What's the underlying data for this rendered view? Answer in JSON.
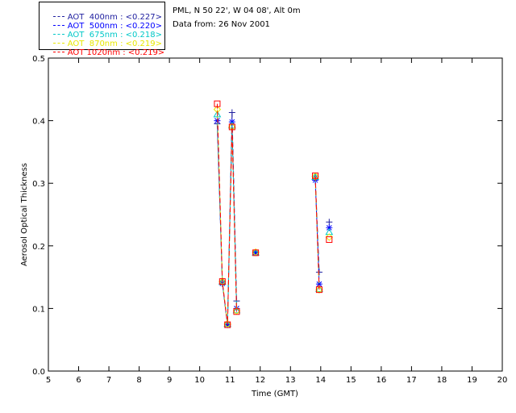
{
  "legend": [
    {
      "label": "AOT  400nm : <0.227>",
      "color": "#2020a0"
    },
    {
      "label": "AOT  500nm : <0.220>",
      "color": "#0000ff"
    },
    {
      "label": "AOT  675nm : <0.218>",
      "color": "#00c8c8"
    },
    {
      "label": "AOT  870nm : <0.219>",
      "color": "#e8e800"
    },
    {
      "label": "AOT 1020nm : <0.219>",
      "color": "#ff0000"
    }
  ],
  "info": {
    "location": "PML, N 50 22', W 04 08', Alt 0m",
    "date": "Data from: 26 Nov 2001"
  },
  "chart_data": {
    "type": "line",
    "xlabel": "Time (GMT)",
    "ylabel": "Aerosol Optical Thickness",
    "xlim": [
      5,
      20
    ],
    "ylim": [
      0,
      0.5
    ],
    "xticks": [
      5,
      6,
      7,
      8,
      9,
      10,
      11,
      12,
      13,
      14,
      15,
      16,
      17,
      18,
      19,
      20
    ],
    "yticks": [
      0.0,
      0.1,
      0.2,
      0.3,
      0.4,
      0.5
    ],
    "ytick_labels": [
      "0.0",
      "0.1",
      "0.2",
      "0.3",
      "0.4",
      "0.5"
    ],
    "grid": false,
    "series": [
      {
        "name": "AOT 400nm",
        "color": "#2020a0",
        "marker": "plus",
        "segments": [
          {
            "x": [
              10.58,
              10.75,
              10.92,
              11.07,
              11.22
            ],
            "y": [
              0.395,
              0.14,
              0.074,
              0.413,
              0.112
            ]
          },
          {
            "x": [
              11.85
            ],
            "y": [
              0.19
            ]
          },
          {
            "x": [
              13.82,
              13.95
            ],
            "y": [
              0.31,
              0.158
            ]
          },
          {
            "x": [
              14.28
            ],
            "y": [
              0.238
            ]
          }
        ]
      },
      {
        "name": "AOT 500nm",
        "color": "#0000ff",
        "marker": "star",
        "segments": [
          {
            "x": [
              10.58,
              10.75,
              10.92,
              11.07,
              11.22
            ],
            "y": [
              0.4,
              0.14,
              0.074,
              0.398,
              0.1
            ]
          },
          {
            "x": [
              11.85
            ],
            "y": [
              0.189
            ]
          },
          {
            "x": [
              13.82,
              13.95
            ],
            "y": [
              0.305,
              0.139
            ]
          },
          {
            "x": [
              14.28
            ],
            "y": [
              0.229
            ]
          }
        ]
      },
      {
        "name": "AOT 675nm",
        "color": "#00c8c8",
        "marker": "triangle",
        "segments": [
          {
            "x": [
              10.58,
              10.75,
              10.92,
              11.07,
              11.22
            ],
            "y": [
              0.41,
              0.142,
              0.075,
              0.392,
              0.097
            ]
          },
          {
            "x": [
              11.85
            ],
            "y": [
              0.189
            ]
          },
          {
            "x": [
              13.82,
              13.95
            ],
            "y": [
              0.31,
              0.131
            ]
          },
          {
            "x": [
              14.28
            ],
            "y": [
              0.222
            ]
          }
        ]
      },
      {
        "name": "AOT 870nm",
        "color": "#e8e800",
        "marker": "diamond",
        "segments": [
          {
            "x": [
              10.58,
              10.75,
              10.92,
              11.07,
              11.22
            ],
            "y": [
              0.418,
              0.143,
              0.075,
              0.39,
              0.096
            ]
          },
          {
            "x": [
              11.85
            ],
            "y": [
              0.19
            ]
          },
          {
            "x": [
              13.82,
              13.95
            ],
            "y": [
              0.311,
              0.13
            ]
          },
          {
            "x": [
              14.28
            ],
            "y": [
              0.214
            ]
          }
        ]
      },
      {
        "name": "AOT 1020nm",
        "color": "#ff0000",
        "marker": "square",
        "segments": [
          {
            "x": [
              10.58,
              10.75,
              10.92,
              11.07,
              11.22
            ],
            "y": [
              0.427,
              0.143,
              0.074,
              0.39,
              0.095
            ]
          },
          {
            "x": [
              11.85
            ],
            "y": [
              0.189
            ]
          },
          {
            "x": [
              13.82,
              13.95
            ],
            "y": [
              0.312,
              0.13
            ]
          },
          {
            "x": [
              14.28
            ],
            "y": [
              0.21
            ]
          }
        ]
      }
    ]
  }
}
